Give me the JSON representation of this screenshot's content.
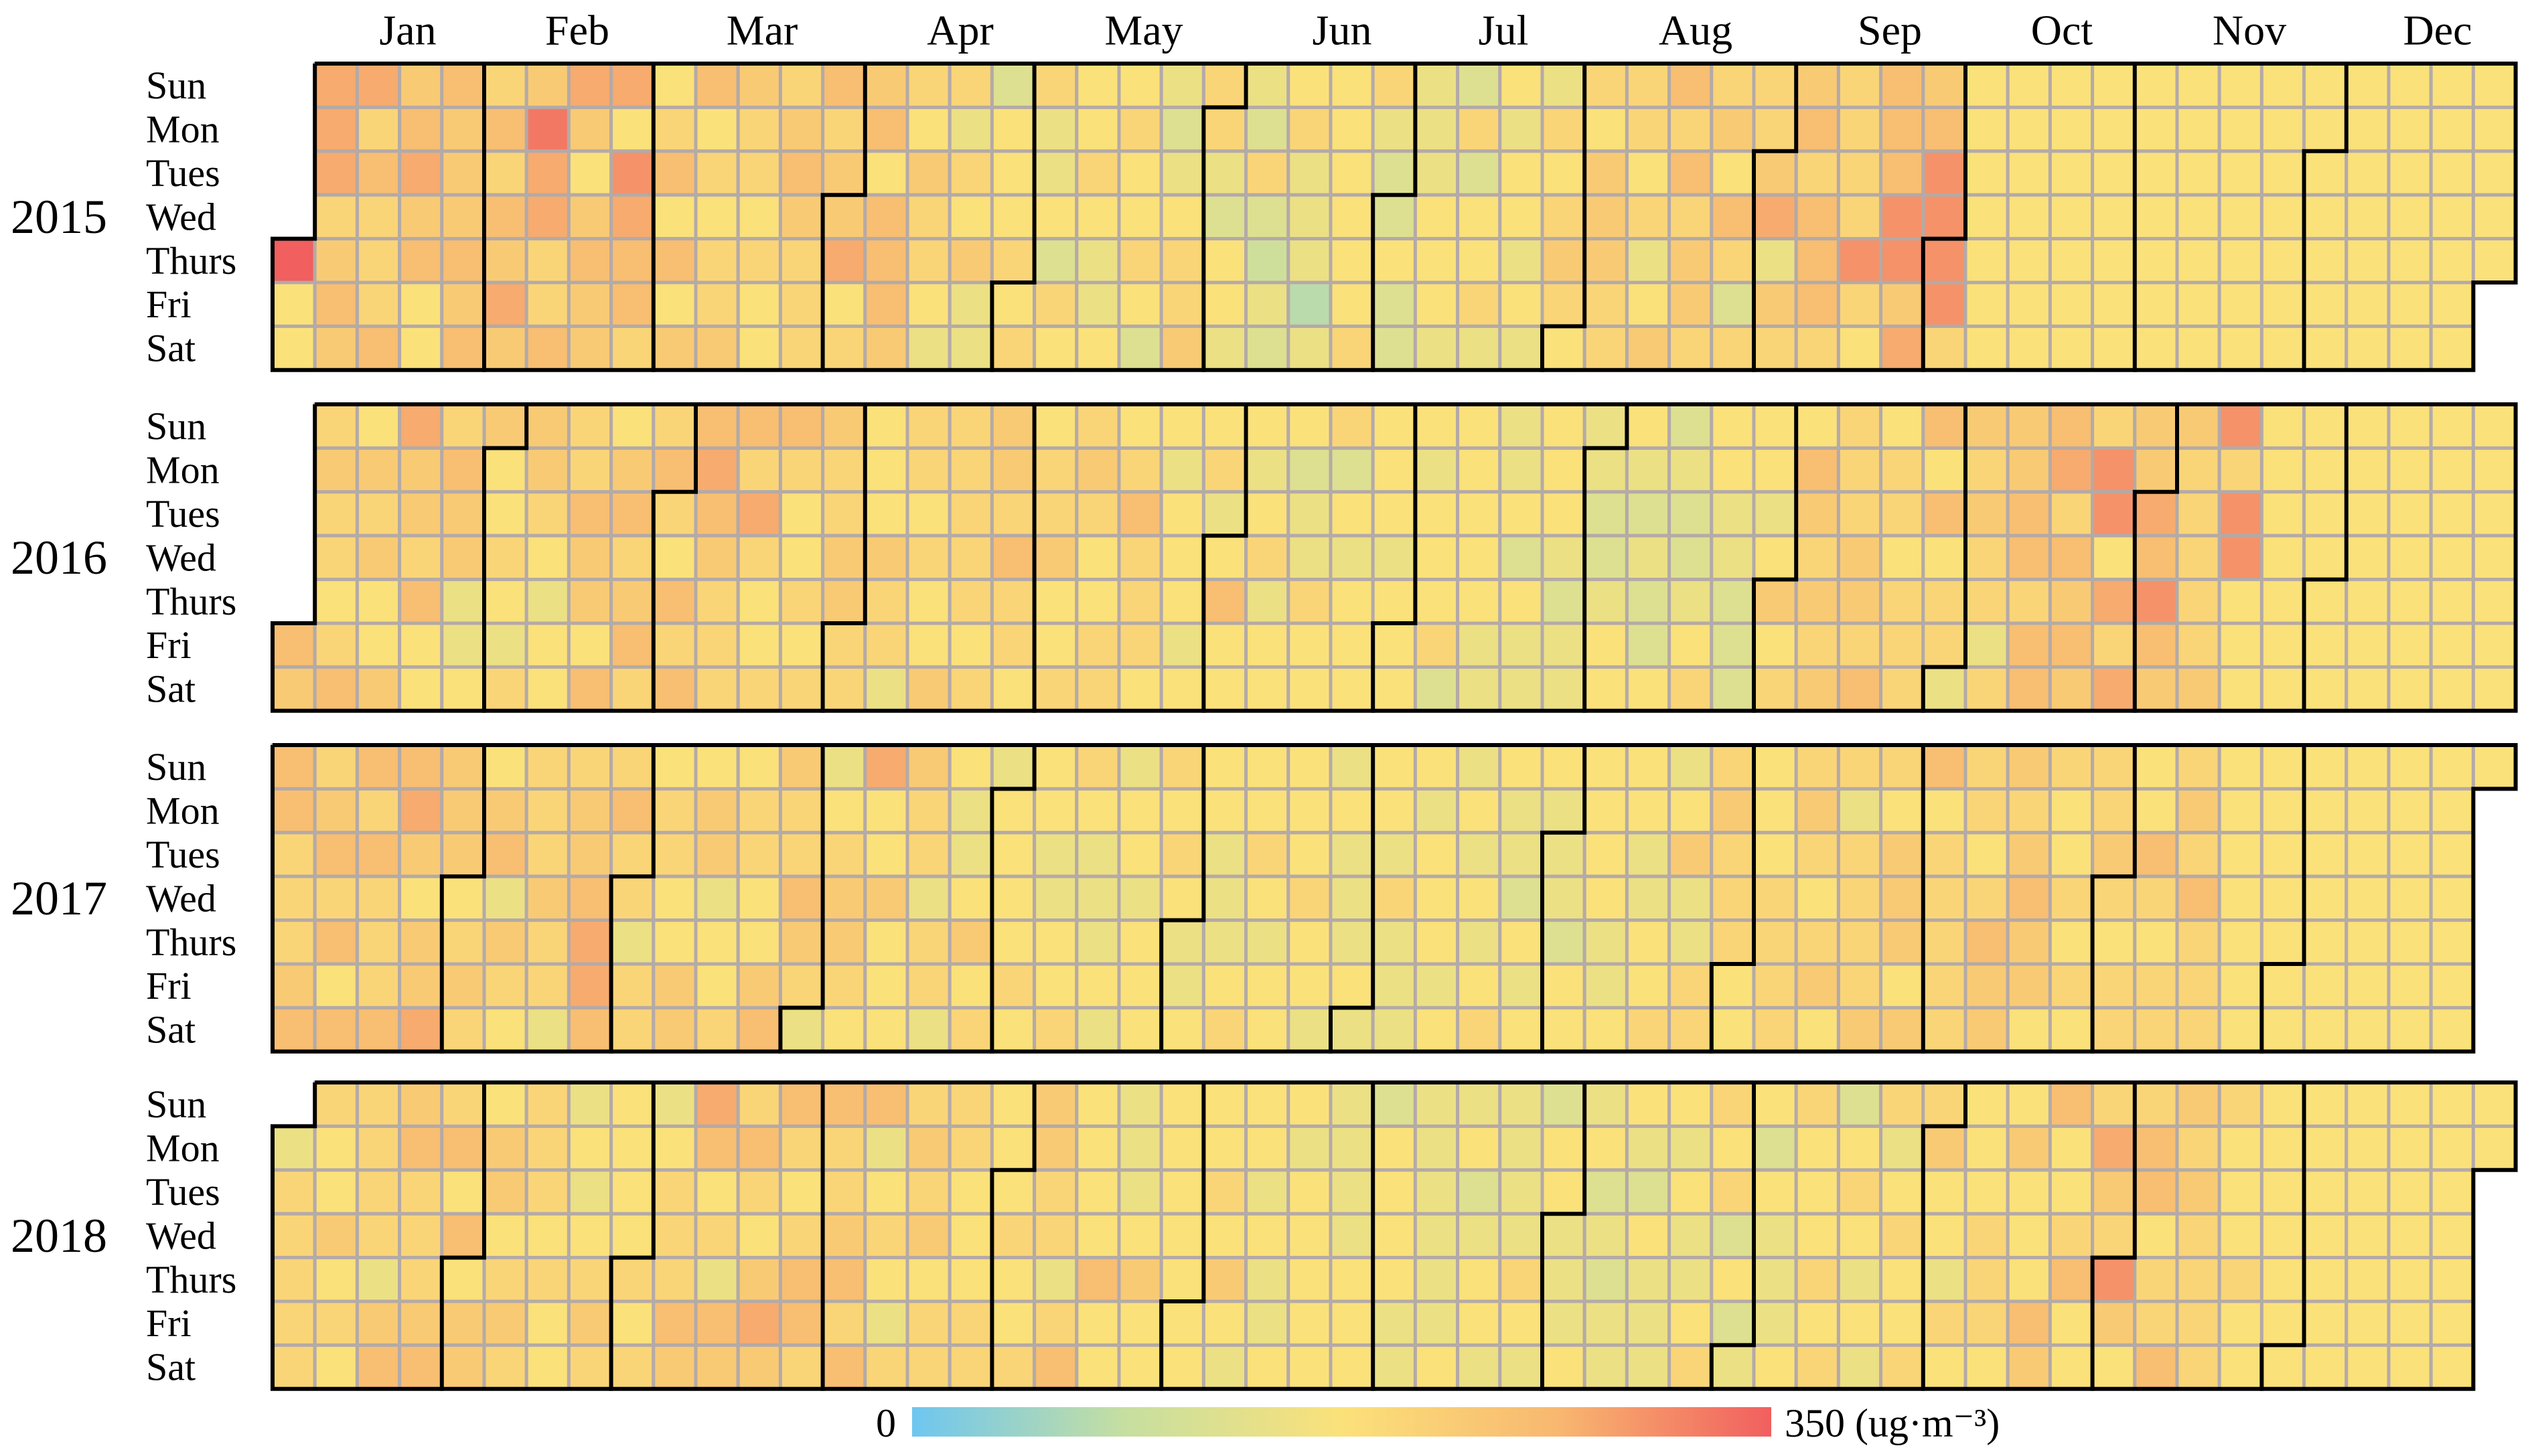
{
  "chart_data": {
    "type": "heatmap",
    "subtype": "calendar",
    "title": "",
    "years": [
      2015,
      2016,
      2017,
      2018
    ],
    "month_labels": [
      "Jan",
      "Feb",
      "Mar",
      "Apr",
      "May",
      "Jun",
      "Jul",
      "Aug",
      "Sep",
      "Oct",
      "Nov",
      "Dec"
    ],
    "day_labels": [
      "Sun",
      "Mon",
      "Tues",
      "Wed",
      "Thurs",
      "Fri",
      "Sat"
    ],
    "colorbar": {
      "min_label": "0",
      "max_label": "350 (ug·m⁻³)",
      "range": [
        0,
        350
      ],
      "colors": [
        "#6ec6f0",
        "#c7dfa0",
        "#fbe17a",
        "#f8b870",
        "#f15f5f"
      ]
    },
    "values": {
      "2015": "Q77BBB89A9B8A888A9AB9A77A999A9A8A8A9B99DBB88AB979A99B7CBAA878A7A79A787889988787789A9888A899B789A7AAA9879887686879665777878866758777876677877875656788988657766585465786663677777788655755666777658577867677676687898787999888878679A8A8998897A858889B6989A8AAA88888C87AAACC9B9ACCCC8",
      "2016": "A9898878A7989779B998A778A996679778768998767788A997A79A89A88A87A8AABA9888A8B8778A8778789889988777988688787798888878998A8877889778898778878A888776777677867A7776786777566877857677777767777677785777776666757667776566665567776565575655678776655577679787A98989888998A7887888A7A7886989886899AA8AAAB8A9A98CC7B8B99BACA99888889C8CC",
      "2017": "AA8889A89A8A7AA8A888AAB9799B999789879A69878889886899ABBA8A8868878877997996778788779A988A9866789987B779777988688676679786777787776677887666766776777878766777666787787677777877667666767768666767776767676787665767766657777776677766778679668889888777778888898789786888898799979A7888888878A99989A9978778787889878877A8788898A888",
      "2018": "6888888779787888869A9A8889A8A7A799799789888878776767898777787867888A9BA786A98A879B9A878AA8A889A8AA678768898978888777887778778998868A7777A7766679777777777778797677676677677777666677757777666666667675677666668765776667675656676576667676678878575675766678777878578767686787788977687777888779777A9A778A778B98C978AA788A989888887778"
    }
  }
}
